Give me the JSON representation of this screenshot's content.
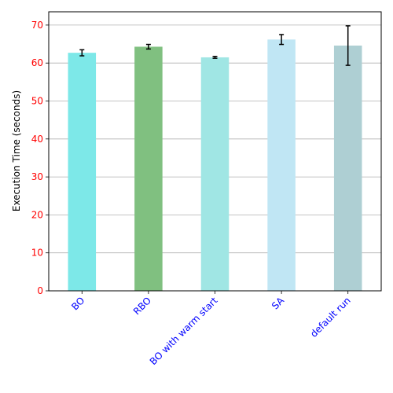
{
  "chart_data": {
    "type": "bar",
    "title": "",
    "xlabel": "",
    "ylabel": "Execution Time (seconds)",
    "ylim": [
      0,
      73.5
    ],
    "yticks": [
      0,
      10,
      20,
      30,
      40,
      50,
      60,
      70
    ],
    "grid": "y",
    "categories": [
      "BO",
      "RBO",
      "BO with warm start",
      "SA",
      "default run"
    ],
    "values": [
      62.7,
      64.3,
      61.5,
      66.2,
      64.6
    ],
    "errors": [
      0.8,
      0.6,
      0.25,
      1.3,
      5.2
    ],
    "bar_colors": [
      "#7de8e8",
      "#80c080",
      "#a0e6e4",
      "#c0e6f4",
      "#aecfd3"
    ],
    "tick_label_colors": {
      "x": "#0000ff",
      "y": "#ff0000"
    }
  }
}
